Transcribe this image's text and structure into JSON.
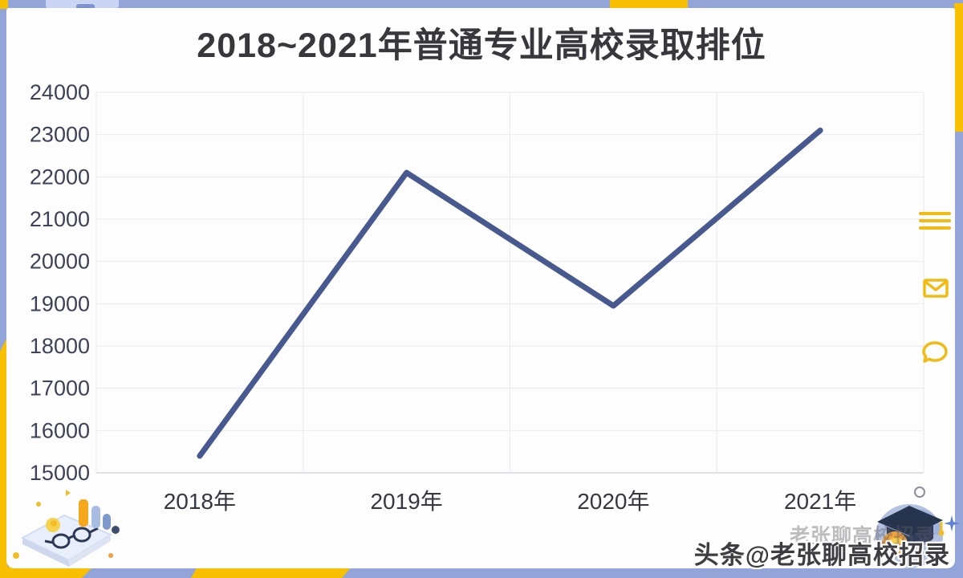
{
  "title": "2018~2021年普通专业高校录取排位",
  "chart_data": {
    "type": "line",
    "title": "2018~2021年普通专业高校录取排位",
    "categories": [
      "2018年",
      "2019年",
      "2020年",
      "2021年"
    ],
    "values": [
      15400,
      22100,
      18950,
      23100
    ],
    "ylim": [
      15000,
      24000
    ],
    "ytick_interval": 1000,
    "ytick_labels": [
      "24000",
      "23000",
      "22000",
      "21000",
      "20000",
      "19000",
      "18000",
      "17000",
      "16000",
      "15000"
    ],
    "grid": true,
    "legend_position": "none",
    "line_color": "#47598f"
  },
  "side_icons": {
    "menu": "menu-icon",
    "mail": "mail-icon",
    "comment": "comment-icon",
    "color": "#f2bb13"
  },
  "watermark": {
    "faint": "老张聊高校招录",
    "main": "头条@老张聊高校招录"
  },
  "colors": {
    "frame_blue": "#93a5d8",
    "frame_yellow": "#f9c001",
    "line": "#47598f",
    "title_text": "#38383c",
    "ytick_text": "#3d4257",
    "xtick_text": "#36383f",
    "gridline": "#e9e9ef",
    "axis_line": "#d6d6de"
  }
}
